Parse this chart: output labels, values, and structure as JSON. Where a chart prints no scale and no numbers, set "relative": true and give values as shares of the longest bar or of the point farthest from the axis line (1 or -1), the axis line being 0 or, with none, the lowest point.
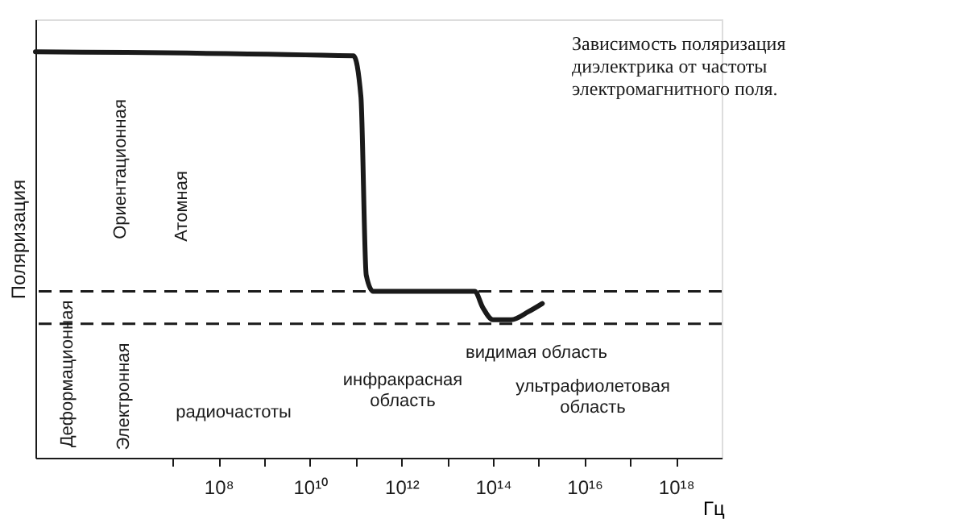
{
  "chart_data": {
    "type": "line",
    "relative": true,
    "title": "Зависимость поляризация диэлектрика от частоты электромагнитного поля.",
    "ylabel": "Поляризация",
    "xlabel": "Гц",
    "log": "x",
    "xlim": [
      10000,
      1e+19
    ],
    "xticks": [
      {
        "value": 10000000.0,
        "label": null
      },
      {
        "value": 100000000.0,
        "label": "10⁸"
      },
      {
        "value": 1000000000.0,
        "label": null
      },
      {
        "value": 10000000000.0,
        "label": "10¹⁰"
      },
      {
        "value": 100000000000.0,
        "label": null
      },
      {
        "value": 1000000000000.0,
        "label": "10¹²"
      },
      {
        "value": 10000000000000.0,
        "label": null
      },
      {
        "value": 100000000000000.0,
        "label": "10¹⁴"
      },
      {
        "value": 1000000000000000.0,
        "label": null
      },
      {
        "value": 1e+16,
        "label": "10¹⁶"
      },
      {
        "value": 1e+17,
        "label": null
      },
      {
        "value": 1e+18,
        "label": "10¹⁸"
      }
    ],
    "x": [
      10000,
      90000000000.0,
      130000000000.0,
      170000000000.0,
      240000000000.0,
      40000000000000.0,
      60000000000000.0,
      100000000000000.0,
      250000000000000.0,
      600000000000000.0,
      1200000000000000.0
    ],
    "series": [
      {
        "color": "#1a1a1a",
        "values": [
          1,
          0.99,
          0.89,
          0.45,
          0.41,
          0.41,
          0.37,
          0.34,
          0.34,
          0.36,
          0.38
        ]
      }
    ],
    "line_style": "solid",
    "grid": false,
    "ref_lines": [
      {
        "axis": "y",
        "value": 0.41,
        "color": "#1a1a1a",
        "line_style": "dashed"
      },
      {
        "axis": "y",
        "value": 0.33,
        "color": "#1a1a1a",
        "line_style": "dashed"
      }
    ],
    "annotations": [
      "Ориентационная",
      "Атомная",
      "Деформационная",
      "Электронная",
      "радиочастоты",
      "инфракрасная\nобласть",
      "видимая область",
      "ультрафиолетовая\nобласть"
    ]
  }
}
